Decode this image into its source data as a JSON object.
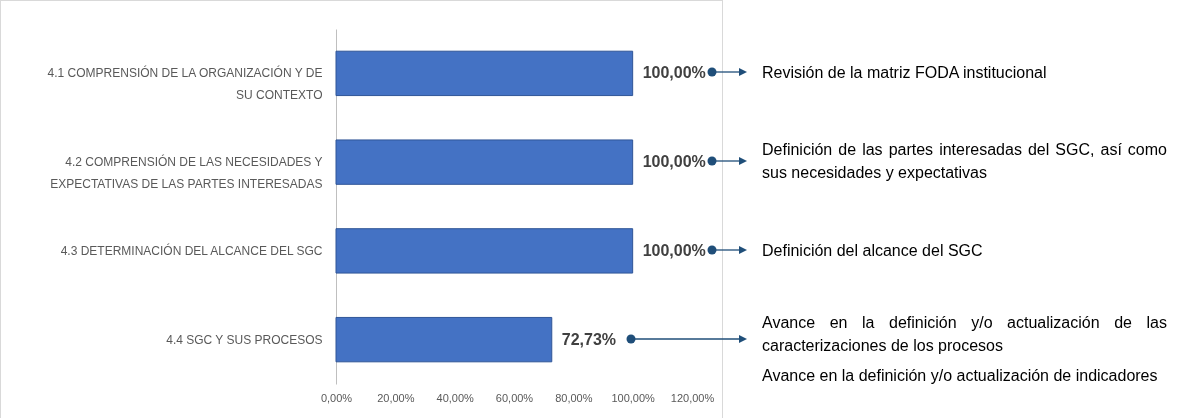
{
  "chart_data": {
    "type": "bar",
    "orientation": "horizontal",
    "categories": [
      "4.1 COMPRENSIÓN DE LA ORGANIZACIÓN Y DE SU CONTEXTO",
      "4.2 COMPRENSIÓN DE LAS NECESIDADES Y EXPECTATIVAS DE LAS PARTES INTERESADAS",
      "4.3 DETERMINACIÓN DEL ALCANCE DEL SGC",
      "4.4 SGC Y SUS PROCESOS"
    ],
    "values": [
      100,
      100,
      100,
      72.73
    ],
    "value_labels": [
      "100,00%",
      "100,00%",
      "100,00%",
      "72,73%"
    ],
    "color": "#4472c4",
    "xlim": [
      0,
      120
    ],
    "xticks": [
      {
        "value": 0,
        "label": "0,00%"
      },
      {
        "value": 20,
        "label": "20,00%"
      },
      {
        "value": 40,
        "label": "40,00%"
      },
      {
        "value": 60,
        "label": "60,00%"
      },
      {
        "value": 80,
        "label": "80,00%"
      },
      {
        "value": 100,
        "label": "100,00%"
      },
      {
        "value": 120,
        "label": "120,00%"
      }
    ],
    "grid": false,
    "annotations": [
      "Revisión de la matriz FODA institucional",
      "Definición de las partes interesadas del SGC, así como sus necesidades y expectativas",
      "Definición del alcance del SGC",
      "Avance en la definición y/o actualización de las caracterizaciones de los procesos",
      "Avance en la definición y/o actualización de indicadores"
    ]
  }
}
